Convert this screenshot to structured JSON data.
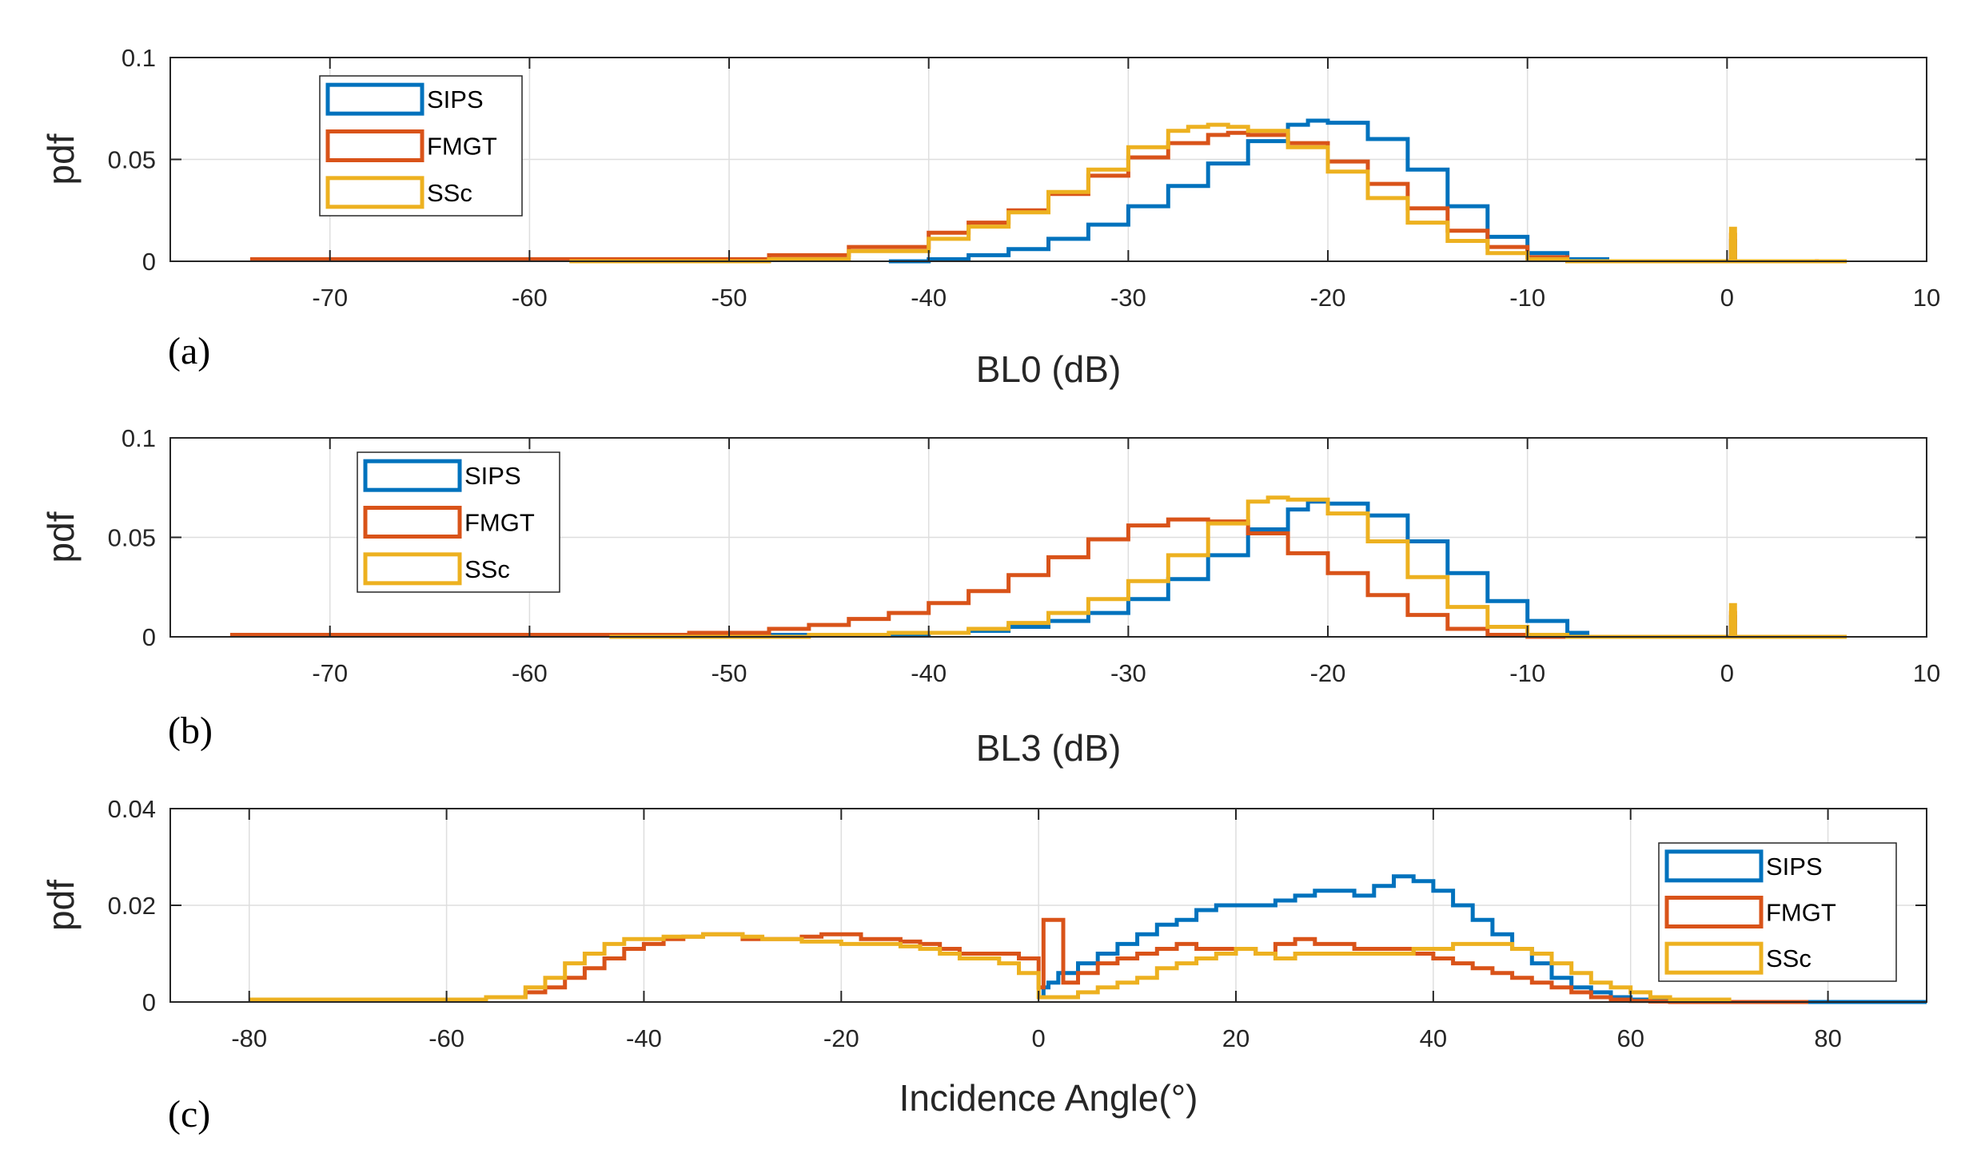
{
  "chart_data": [
    {
      "type": "line",
      "panel_label": "(a)",
      "xlabel": "BL0 (dB)",
      "ylabel": "pdf",
      "xlim": [
        -78,
        10
      ],
      "ylim": [
        0,
        0.1
      ],
      "xticks": [
        -70,
        -60,
        -50,
        -40,
        -30,
        -20,
        -10,
        0,
        10
      ],
      "yticks": [
        0,
        0.05,
        0.1
      ],
      "xticklabels": [
        "-70",
        "-60",
        "-50",
        "-40",
        "-30",
        "-20",
        "-10",
        "0",
        "10"
      ],
      "yticklabels": [
        "0",
        "0.05",
        "0.1"
      ],
      "grid": true,
      "legend": "top-left",
      "series": [
        {
          "name": "SIPS",
          "color": "#0072BD",
          "x": [
            -42,
            -40,
            -38,
            -36,
            -34,
            -32,
            -30,
            -28,
            -26,
            -24,
            -22,
            -21,
            -20,
            -18,
            -16,
            -14,
            -12,
            -10,
            -8,
            -6,
            0,
            0.2,
            0.4,
            6
          ],
          "y": [
            0,
            0.001,
            0.003,
            0.006,
            0.011,
            0.018,
            0.027,
            0.037,
            0.048,
            0.059,
            0.067,
            0.069,
            0.068,
            0.06,
            0.045,
            0.027,
            0.012,
            0.004,
            0.001,
            0,
            0,
            0.01,
            0,
            0
          ]
        },
        {
          "name": "FMGT",
          "color": "#D95319",
          "x": [
            -74,
            -60,
            -52,
            -48,
            -44,
            -40,
            -38,
            -36,
            -34,
            -32,
            -30,
            -28,
            -26,
            -25,
            -24,
            -22,
            -20,
            -18,
            -16,
            -14,
            -12,
            -10,
            -8,
            0,
            0.2,
            0.4,
            4.5
          ],
          "y": [
            0.001,
            0.001,
            0.001,
            0.003,
            0.007,
            0.014,
            0.019,
            0.025,
            0.033,
            0.042,
            0.051,
            0.058,
            0.062,
            0.063,
            0.062,
            0.058,
            0.049,
            0.038,
            0.026,
            0.015,
            0.007,
            0.002,
            0,
            0,
            0.013,
            0,
            0.001
          ]
        },
        {
          "name": "SSc",
          "color": "#EDB120",
          "x": [
            -58,
            -48,
            -44,
            -40,
            -38,
            -36,
            -34,
            -32,
            -30,
            -28,
            -27,
            -26,
            -25,
            -24,
            -22,
            -20,
            -18,
            -16,
            -14,
            -12,
            -10,
            -8,
            0,
            0.2,
            0.4,
            6
          ],
          "y": [
            0,
            0.001,
            0.005,
            0.011,
            0.017,
            0.024,
            0.034,
            0.045,
            0.056,
            0.064,
            0.066,
            0.067,
            0.066,
            0.064,
            0.056,
            0.044,
            0.031,
            0.019,
            0.01,
            0.004,
            0.001,
            0,
            0,
            0.016,
            0,
            0
          ]
        }
      ]
    },
    {
      "type": "line",
      "panel_label": "(b)",
      "xlabel": "BL3 (dB)",
      "ylabel": "pdf",
      "xlim": [
        -78,
        10
      ],
      "ylim": [
        0,
        0.1
      ],
      "xticks": [
        -70,
        -60,
        -50,
        -40,
        -30,
        -20,
        -10,
        0,
        10
      ],
      "yticks": [
        0,
        0.05,
        0.1
      ],
      "xticklabels": [
        "-70",
        "-60",
        "-50",
        "-40",
        "-30",
        "-20",
        "-10",
        "0",
        "10"
      ],
      "yticklabels": [
        "0",
        "0.05",
        "0.1"
      ],
      "grid": true,
      "legend": "top-left",
      "series": [
        {
          "name": "SIPS",
          "color": "#0072BD",
          "x": [
            -52,
            -44,
            -40,
            -38,
            -36,
            -34,
            -32,
            -30,
            -28,
            -26,
            -24,
            -22,
            -21,
            -20,
            -18,
            -16,
            -14,
            -12,
            -10,
            -8,
            -7,
            0,
            0.2,
            0.4,
            5
          ],
          "y": [
            0.001,
            0.001,
            0.002,
            0.003,
            0.005,
            0.008,
            0.012,
            0.019,
            0.029,
            0.041,
            0.054,
            0.064,
            0.068,
            0.067,
            0.061,
            0.048,
            0.032,
            0.018,
            0.008,
            0.002,
            0,
            0,
            0.01,
            0,
            0.001
          ]
        },
        {
          "name": "FMGT",
          "color": "#D95319",
          "x": [
            -75,
            -60,
            -52,
            -48,
            -46,
            -44,
            -42,
            -40,
            -38,
            -36,
            -34,
            -32,
            -30,
            -28,
            -27,
            -26,
            -24,
            -22,
            -20,
            -18,
            -16,
            -14,
            -12,
            -10,
            0,
            0.2,
            0.4,
            3
          ],
          "y": [
            0.001,
            0.001,
            0.002,
            0.004,
            0.006,
            0.009,
            0.012,
            0.017,
            0.023,
            0.031,
            0.04,
            0.049,
            0.056,
            0.059,
            0.059,
            0.058,
            0.052,
            0.042,
            0.032,
            0.021,
            0.011,
            0.004,
            0.001,
            0,
            0,
            0.012,
            0,
            0
          ]
        },
        {
          "name": "SSc",
          "color": "#EDB120",
          "x": [
            -56,
            -46,
            -42,
            -38,
            -36,
            -34,
            -32,
            -30,
            -28,
            -26,
            -24,
            -23,
            -22,
            -20,
            -18,
            -16,
            -14,
            -12,
            -10,
            -8,
            0,
            0.2,
            0.4,
            6
          ],
          "y": [
            0,
            0.001,
            0.002,
            0.004,
            0.007,
            0.012,
            0.019,
            0.028,
            0.041,
            0.057,
            0.068,
            0.07,
            0.069,
            0.062,
            0.048,
            0.03,
            0.015,
            0.005,
            0.001,
            0,
            0,
            0.016,
            0,
            0
          ]
        }
      ]
    },
    {
      "type": "line",
      "panel_label": "(c)",
      "xlabel": "Incidence Angle(°)",
      "ylabel": "pdf",
      "xlim": [
        -88,
        90
      ],
      "ylim": [
        0,
        0.04
      ],
      "xticks": [
        -80,
        -60,
        -40,
        -20,
        0,
        20,
        40,
        60,
        80
      ],
      "yticks": [
        0,
        0.02,
        0.04
      ],
      "xticklabels": [
        "-80",
        "-60",
        "-40",
        "-20",
        "0",
        "20",
        "40",
        "60",
        "80"
      ],
      "yticklabels": [
        "0",
        "0.02",
        "0.04"
      ],
      "grid": true,
      "legend": "top-right",
      "series": [
        {
          "name": "SIPS",
          "color": "#0072BD",
          "x": [
            0,
            0.5,
            1,
            2,
            4,
            6,
            8,
            10,
            12,
            14,
            16,
            18,
            20,
            22,
            24,
            26,
            28,
            30,
            32,
            34,
            36,
            38,
            40,
            42,
            44,
            46,
            48,
            50,
            52,
            54,
            56,
            58,
            60,
            62,
            64,
            70,
            78,
            90
          ],
          "y": [
            0.001,
            0.003,
            0.004,
            0.006,
            0.008,
            0.01,
            0.012,
            0.014,
            0.016,
            0.017,
            0.019,
            0.02,
            0.02,
            0.02,
            0.021,
            0.022,
            0.023,
            0.023,
            0.022,
            0.024,
            0.026,
            0.025,
            0.023,
            0.02,
            0.017,
            0.014,
            0.011,
            0.008,
            0.005,
            0.003,
            0.002,
            0.001,
            0.0005,
            0.0002,
            0,
            0,
            0,
            0
          ]
        },
        {
          "name": "FMGT",
          "color": "#D95319",
          "x": [
            -80,
            -60,
            -56,
            -52,
            -50,
            -48,
            -46,
            -44,
            -42,
            -40,
            -38,
            -36,
            -34,
            -32,
            -30,
            -28,
            -26,
            -24,
            -22,
            -20,
            -18,
            -16,
            -14,
            -12,
            -10,
            -8,
            -6,
            -4,
            -2,
            0,
            0.5,
            2,
            2.5,
            4,
            6,
            8,
            10,
            12,
            14,
            16,
            18,
            20,
            22,
            24,
            26,
            28,
            30,
            32,
            34,
            36,
            38,
            40,
            42,
            44,
            46,
            48,
            50,
            52,
            54,
            56,
            58,
            60,
            62,
            64,
            78
          ],
          "y": [
            0.0003,
            0.0003,
            0.001,
            0.002,
            0.003,
            0.005,
            0.007,
            0.009,
            0.011,
            0.012,
            0.013,
            0.0135,
            0.014,
            0.014,
            0.013,
            0.013,
            0.013,
            0.0135,
            0.014,
            0.014,
            0.013,
            0.013,
            0.0125,
            0.012,
            0.011,
            0.01,
            0.01,
            0.01,
            0.009,
            0.003,
            0.017,
            0.017,
            0.004,
            0.006,
            0.008,
            0.009,
            0.01,
            0.011,
            0.012,
            0.011,
            0.011,
            0.011,
            0.01,
            0.012,
            0.013,
            0.012,
            0.012,
            0.011,
            0.011,
            0.011,
            0.01,
            0.009,
            0.008,
            0.007,
            0.006,
            0.005,
            0.004,
            0.003,
            0.002,
            0.001,
            0.0005,
            0.0002,
            0.0001,
            0,
            0
          ]
        },
        {
          "name": "SSc",
          "color": "#EDB120",
          "x": [
            -80,
            -60,
            -56,
            -52,
            -50,
            -48,
            -46,
            -44,
            -42,
            -40,
            -38,
            -36,
            -34,
            -32,
            -30,
            -28,
            -26,
            -24,
            -22,
            -20,
            -18,
            -16,
            -14,
            -12,
            -10,
            -8,
            -6,
            -4,
            -2,
            0,
            2,
            4,
            6,
            8,
            10,
            12,
            14,
            16,
            18,
            20,
            22,
            24,
            26,
            28,
            30,
            32,
            34,
            36,
            38,
            40,
            42,
            44,
            46,
            48,
            50,
            52,
            54,
            56,
            58,
            60,
            62,
            64,
            70
          ],
          "y": [
            0.0005,
            0.0005,
            0.001,
            0.003,
            0.005,
            0.008,
            0.01,
            0.012,
            0.013,
            0.013,
            0.0135,
            0.0135,
            0.014,
            0.014,
            0.0135,
            0.013,
            0.013,
            0.0125,
            0.0125,
            0.012,
            0.012,
            0.012,
            0.0115,
            0.011,
            0.01,
            0.009,
            0.009,
            0.008,
            0.006,
            0.001,
            0.001,
            0.002,
            0.003,
            0.004,
            0.005,
            0.007,
            0.008,
            0.009,
            0.01,
            0.011,
            0.01,
            0.009,
            0.01,
            0.01,
            0.01,
            0.01,
            0.01,
            0.01,
            0.011,
            0.011,
            0.012,
            0.012,
            0.012,
            0.011,
            0.01,
            0.008,
            0.006,
            0.004,
            0.003,
            0.002,
            0.001,
            0.0005,
            0
          ]
        }
      ]
    }
  ]
}
